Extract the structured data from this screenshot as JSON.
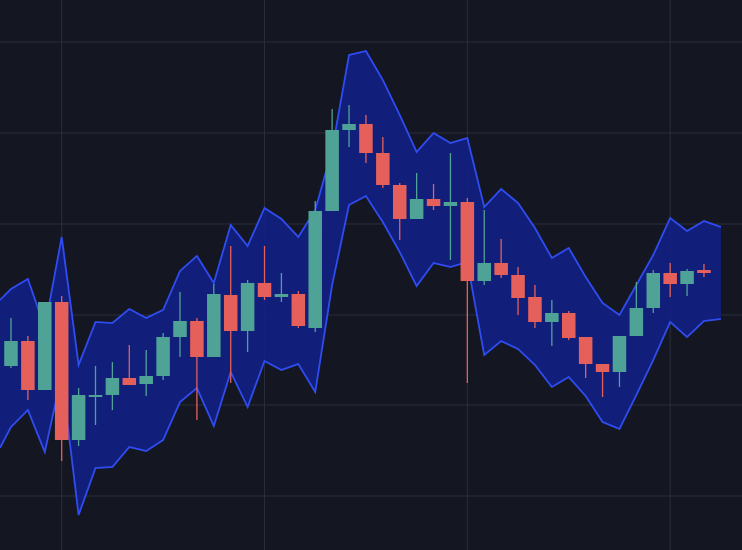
{
  "chart_data": {
    "type": "candlestick",
    "open": [
      18.4,
      20.9,
      16.0,
      24.8,
      11.0,
      15.3,
      15.5,
      17.2,
      16.6,
      17.4,
      21.3,
      22.9,
      19.3,
      25.5,
      21.9,
      26.7,
      25.3,
      25.6,
      22.2,
      33.9,
      42.0,
      42.6,
      39.7,
      36.5,
      33.1,
      35.1,
      34.4,
      34.8,
      26.9,
      28.7,
      27.5,
      25.3,
      22.8,
      23.7,
      21.3,
      18.6,
      17.8,
      21.4,
      24.2,
      27.7,
      26.6,
      28.0
    ],
    "high": [
      23.2,
      21.4,
      24.8,
      25.4,
      16.2,
      18.4,
      18.8,
      20.5,
      20.0,
      21.7,
      25.8,
      23.2,
      26.6,
      30.4,
      27.0,
      30.4,
      27.7,
      25.9,
      34.9,
      44.1,
      44.5,
      43.5,
      41.3,
      36.7,
      37.7,
      36.6,
      39.7,
      35.2,
      34.0,
      31.1,
      28.3,
      26.5,
      25.0,
      23.9,
      21.3,
      18.6,
      21.4,
      26.8,
      28.0,
      28.7,
      28.1,
      28.6
    ],
    "low": [
      18.2,
      15.0,
      16.0,
      8.9,
      10.4,
      12.5,
      14.0,
      16.5,
      15.4,
      17.0,
      19.3,
      13.0,
      19.3,
      16.7,
      19.8,
      25.0,
      24.8,
      22.2,
      21.8,
      33.9,
      40.3,
      38.7,
      36.2,
      31.0,
      33.1,
      34.0,
      29.0,
      16.7,
      26.5,
      27.2,
      23.5,
      22.2,
      20.4,
      21.0,
      17.2,
      15.3,
      16.3,
      21.4,
      23.7,
      25.3,
      25.4,
      27.3
    ],
    "close": [
      20.9,
      16.0,
      24.8,
      11.0,
      15.5,
      15.5,
      17.2,
      16.5,
      17.4,
      21.3,
      22.9,
      19.3,
      25.6,
      21.9,
      26.7,
      25.3,
      25.6,
      22.4,
      33.9,
      42.0,
      42.6,
      39.7,
      36.5,
      33.1,
      35.1,
      34.4,
      34.8,
      26.9,
      28.7,
      27.5,
      25.2,
      22.8,
      23.7,
      21.2,
      18.6,
      17.8,
      21.4,
      24.2,
      27.7,
      26.6,
      27.9,
      27.7
    ],
    "up_color": "#4fa396",
    "down_color": "#e5605a",
    "band": {
      "x": [
        -0.65,
        0,
        1,
        2,
        3,
        4,
        5,
        6,
        7,
        8,
        9,
        10,
        11,
        12,
        13,
        14,
        15,
        16,
        17,
        18,
        19,
        20,
        21,
        22,
        23,
        24,
        25,
        26,
        27,
        28,
        29,
        30,
        31,
        32,
        33,
        34,
        35,
        36,
        37,
        38,
        39,
        40,
        41,
        42
      ],
      "upper": [
        25.0,
        26.1,
        27.1,
        22.2,
        31.3,
        18.5,
        22.8,
        22.7,
        24.1,
        23.2,
        24.0,
        27.9,
        29.4,
        26.7,
        32.5,
        30.4,
        34.2,
        33.1,
        31.3,
        34.0,
        40.0,
        49.5,
        49.9,
        47.0,
        43.5,
        39.8,
        41.7,
        40.7,
        41.2,
        34.3,
        36.1,
        34.7,
        32.2,
        29.2,
        30.2,
        27.3,
        24.7,
        23.5,
        26.5,
        29.5,
        33.2,
        31.9,
        32.9,
        32.3
      ],
      "lower": [
        10.2,
        12.3,
        14.0,
        9.8,
        17.5,
        3.5,
        8.2,
        8.3,
        10.3,
        9.9,
        11.0,
        14.8,
        16.2,
        12.4,
        17.8,
        14.3,
        18.9,
        18.0,
        18.6,
        15.8,
        26.5,
        34.5,
        35.4,
        32.8,
        29.8,
        26.4,
        28.7,
        28.3,
        28.8,
        19.5,
        20.9,
        20.1,
        18.5,
        16.3,
        17.3,
        15.4,
        12.8,
        12.1,
        15.5,
        19.0,
        22.8,
        21.3,
        22.9,
        23.1
      ],
      "color": "#2f4cf0",
      "fill": "#10208a"
    },
    "xlim": [
      -0.65,
      43.25
    ],
    "ylim": [
      0,
      55
    ],
    "xticks": [
      3,
      15,
      27,
      39
    ],
    "yticks": [
      5.4,
      14.5,
      23.5,
      32.6,
      41.7,
      50.8
    ],
    "grid": true,
    "grid_color": "#2a2e3a"
  }
}
